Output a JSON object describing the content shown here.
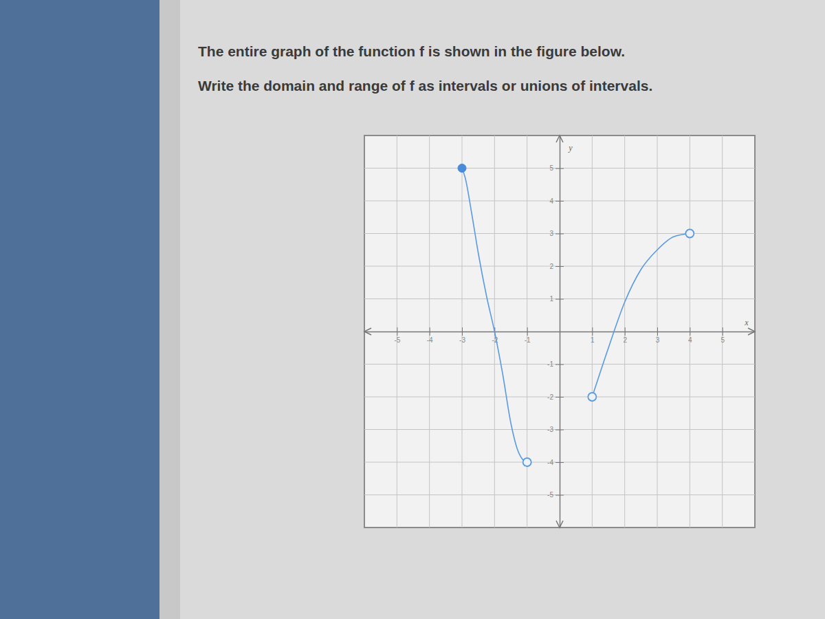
{
  "chart_data": {
    "type": "line",
    "title": "The entire graph of the function f is shown in the figure below.",
    "subtitle": "Write the domain and range of f as intervals or unions of intervals.",
    "xlabel": "x",
    "ylabel": "y",
    "xlim": [
      -6,
      6
    ],
    "ylim": [
      -6,
      6
    ],
    "xticks": [
      -5,
      -4,
      -3,
      -2,
      -1,
      1,
      2,
      3,
      4,
      5
    ],
    "yticks": [
      -5,
      -4,
      -3,
      -2,
      -1,
      1,
      2,
      3,
      4,
      5
    ],
    "grid": true,
    "series": [
      {
        "type": "line",
        "color": "#5a9be0",
        "x": [
          -3,
          -2.9,
          -2.7,
          -2.5,
          -2.25,
          -2,
          -1.75,
          -1.5,
          -1.3,
          -1.15,
          -1
        ],
        "values": [
          5,
          4.7,
          3.6,
          2.4,
          1.1,
          0,
          -1.3,
          -2.8,
          -3.6,
          -3.9,
          -4
        ]
      },
      {
        "type": "line",
        "color": "#5a9be0",
        "x": [
          1,
          1.5,
          2,
          2.5,
          3,
          3.5,
          4
        ],
        "values": [
          -2,
          -0.5,
          0.9,
          1.9,
          2.5,
          2.9,
          3
        ]
      },
      {
        "type": "scatter",
        "marker": "filled-circle",
        "color": "#4a8ad8",
        "x": [
          -3
        ],
        "values": [
          5
        ]
      },
      {
        "type": "scatter",
        "marker": "open-circle",
        "color": "#5a9be0",
        "x": [
          -1,
          1,
          4
        ],
        "values": [
          -4,
          -2,
          3
        ]
      }
    ]
  }
}
